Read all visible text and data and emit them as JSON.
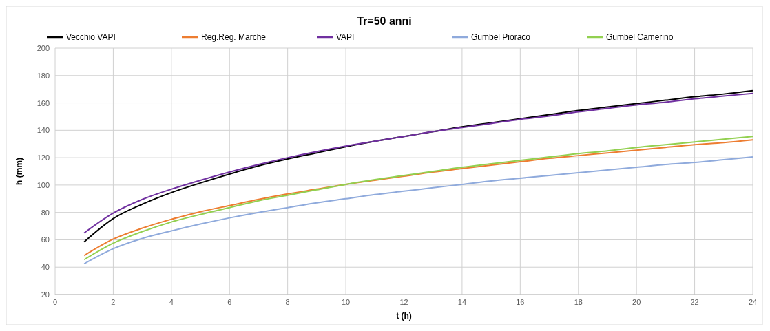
{
  "chart_data": {
    "type": "line",
    "title": "Tr=50 anni",
    "xlabel": "t (h)",
    "ylabel": "h (mm)",
    "x": [
      1,
      2,
      3,
      4,
      5,
      6,
      7,
      8,
      9,
      10,
      11,
      12,
      13,
      14,
      15,
      16,
      17,
      18,
      19,
      20,
      21,
      22,
      23,
      24
    ],
    "series": [
      {
        "name": "Vecchio VAPI",
        "color": "#000000",
        "values": [
          58.5,
          75.5,
          86,
          94.5,
          101.5,
          108,
          114,
          119,
          123.5,
          128,
          132,
          135.5,
          139,
          142.5,
          145.5,
          148.5,
          151.5,
          154.5,
          157,
          159.5,
          162,
          164.5,
          166.5,
          169
        ]
      },
      {
        "name": "Reg.Reg. Marche",
        "color": "#ed7d31",
        "values": [
          48.5,
          60.5,
          68.5,
          75,
          80.5,
          85,
          89.5,
          93.5,
          97,
          100.5,
          103.5,
          106.5,
          109.5,
          112,
          114.5,
          117,
          119.5,
          121.5,
          123.5,
          125.5,
          127.5,
          129.5,
          131,
          133
        ]
      },
      {
        "name": "VAPI",
        "color": "#7030a0",
        "values": [
          65,
          79.5,
          89.5,
          97,
          103.5,
          109.5,
          115,
          120,
          124.5,
          128.5,
          132,
          135.5,
          139,
          142,
          145,
          148,
          150.5,
          153.5,
          156,
          158.5,
          160.5,
          163,
          165,
          167
        ]
      },
      {
        "name": "Gumbel Pioraco",
        "color": "#8faadc",
        "values": [
          42.5,
          53.5,
          61,
          66.5,
          71.5,
          76,
          80,
          83.5,
          87,
          90,
          93,
          95.5,
          98,
          100.5,
          103,
          105,
          107,
          109,
          111,
          113,
          115,
          116.5,
          118.5,
          120.5
        ]
      },
      {
        "name": "Gumbel Camerino",
        "color": "#92d050",
        "values": [
          45.5,
          57.5,
          66,
          73,
          78.5,
          83.5,
          88.5,
          92.5,
          96.5,
          100.5,
          104,
          107,
          110,
          113,
          115.5,
          118,
          120.5,
          123,
          125,
          127.5,
          129.5,
          131.5,
          133.5,
          135.5
        ]
      }
    ],
    "xlim": [
      0,
      24
    ],
    "xticks": [
      0,
      2,
      4,
      6,
      8,
      10,
      12,
      14,
      16,
      18,
      20,
      22,
      24
    ],
    "ylim": [
      20,
      200
    ],
    "yticks": [
      20,
      40,
      60,
      80,
      100,
      120,
      140,
      160,
      180,
      200
    ],
    "grid": true,
    "legend": "top",
    "marker": "none",
    "line_style": "solid"
  }
}
